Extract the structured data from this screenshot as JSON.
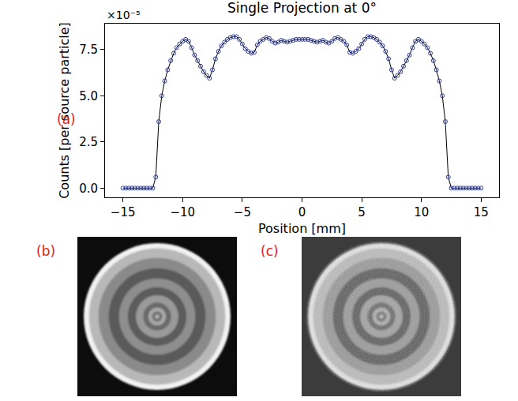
{
  "chart_data": {
    "type": "line",
    "title": "Single Projection at 0°",
    "x_label": "Position [mm]",
    "y_label": "Counts [per source particle]",
    "y_exponent_label": "×10⁻⁵",
    "panel_label": "(a)",
    "x": [
      -15,
      -14.75,
      -14.5,
      -14.25,
      -14,
      -13.75,
      -13.5,
      -13.25,
      -13,
      -12.75,
      -12.5,
      -12.25,
      -12,
      -11.75,
      -11.5,
      -11.25,
      -11,
      -10.75,
      -10.5,
      -10.25,
      -10,
      -9.75,
      -9.5,
      -9.25,
      -9,
      -8.75,
      -8.5,
      -8.25,
      -8,
      -7.75,
      -7.5,
      -7.25,
      -7,
      -6.75,
      -6.5,
      -6.25,
      -6,
      -5.75,
      -5.5,
      -5.25,
      -5,
      -4.75,
      -4.5,
      -4.25,
      -4,
      -3.75,
      -3.5,
      -3.25,
      -3,
      -2.75,
      -2.5,
      -2.25,
      -2,
      -1.75,
      -1.5,
      -1.25,
      -1,
      -0.75,
      -0.5,
      -0.25,
      0,
      0.25,
      0.5,
      0.75,
      1,
      1.25,
      1.5,
      1.75,
      2,
      2.25,
      2.5,
      2.75,
      3,
      3.25,
      3.5,
      3.75,
      4,
      4.25,
      4.5,
      4.75,
      5,
      5.25,
      5.5,
      5.75,
      6,
      6.25,
      6.5,
      6.75,
      7,
      7.25,
      7.5,
      7.75,
      8,
      8.25,
      8.5,
      8.75,
      9,
      9.25,
      9.5,
      9.75,
      10,
      10.25,
      10.5,
      10.75,
      11,
      11.25,
      11.5,
      11.75,
      12,
      12.25,
      12.5,
      12.75,
      13,
      13.25,
      13.5,
      13.75,
      14,
      14.25,
      14.5,
      14.75,
      15
    ],
    "values": [
      0,
      0,
      0,
      0,
      0,
      0,
      0,
      0,
      0,
      0,
      0,
      0.6,
      3.6,
      5.0,
      5.8,
      6.4,
      6.9,
      7.3,
      7.6,
      7.8,
      7.95,
      8.05,
      7.95,
      7.6,
      7.2,
      6.9,
      6.6,
      6.3,
      6.1,
      5.95,
      6.4,
      7.0,
      7.4,
      7.7,
      7.9,
      8.05,
      8.15,
      8.2,
      8.2,
      8.05,
      7.8,
      7.55,
      7.4,
      7.3,
      7.35,
      7.75,
      7.95,
      8.05,
      8.15,
      8.1,
      7.95,
      7.85,
      7.9,
      8.0,
      7.95,
      7.9,
      7.95,
      8.0,
      8.05,
      8.05,
      8.05,
      8.05,
      8.05,
      8.0,
      7.95,
      7.9,
      7.95,
      8.0,
      7.9,
      7.85,
      7.95,
      8.1,
      8.15,
      8.05,
      7.95,
      7.75,
      7.35,
      7.3,
      7.4,
      7.55,
      7.8,
      8.05,
      8.2,
      8.2,
      8.15,
      8.05,
      7.9,
      7.7,
      7.4,
      7.0,
      6.4,
      5.95,
      6.1,
      6.3,
      6.6,
      6.9,
      7.2,
      7.6,
      7.95,
      8.05,
      7.95,
      7.8,
      7.6,
      7.3,
      6.9,
      6.4,
      5.8,
      5.0,
      3.6,
      0.6,
      0,
      0,
      0,
      0,
      0,
      0,
      0,
      0,
      0,
      0,
      0
    ],
    "color": "#2b3a9c",
    "marker": "circle-open",
    "line_style": "solid",
    "xlim": [
      -16.5,
      16.5
    ],
    "xticks": [
      {
        "value": -15,
        "label": "−15"
      },
      {
        "value": -10,
        "label": "−10"
      },
      {
        "value": -5,
        "label": "−5"
      },
      0,
      5,
      10,
      15
    ],
    "ylim": [
      -0.5,
      8.9
    ],
    "yticks": [
      {
        "value": 0,
        "label": "0.0"
      },
      {
        "value": 2.5,
        "label": "2.5"
      },
      {
        "value": 5,
        "label": "5.0"
      },
      {
        "value": 7.5,
        "label": "7.5"
      }
    ],
    "grid": false
  },
  "images": [
    {
      "panel_label": "(b)"
    },
    {
      "panel_label": "(c)"
    }
  ]
}
